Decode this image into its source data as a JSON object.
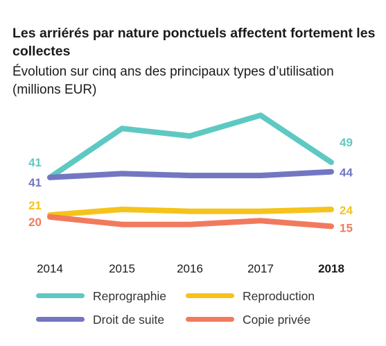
{
  "title": "Les arriérés par nature ponctuels affectent fortement les collectes",
  "subtitle": "Évolution sur cinq ans des principaux types d’utilisation (millions EUR)",
  "chart_data": {
    "type": "line",
    "categories": [
      "2014",
      "2015",
      "2016",
      "2017",
      "2018"
    ],
    "highlight_category": "2018",
    "ylim": [
      10,
      80
    ],
    "grid": false,
    "legend_position": "bottom",
    "series": [
      {
        "name": "Reprographie",
        "color": "#5ec9c2",
        "values": [
          41,
          67,
          63,
          74,
          49
        ],
        "start_label": "41",
        "end_label": "49"
      },
      {
        "name": "Droit de suite",
        "color": "#7277c2",
        "values": [
          41,
          43,
          42,
          42,
          44
        ],
        "start_label": "41",
        "end_label": "44"
      },
      {
        "name": "Reproduction",
        "color": "#f6c31c",
        "values": [
          21,
          24,
          23,
          23,
          24
        ],
        "start_label": "21",
        "end_label": "24"
      },
      {
        "name": "Copie privée",
        "color": "#f17a5e",
        "values": [
          20,
          16,
          16,
          18,
          15
        ],
        "start_label": "20",
        "end_label": "15"
      }
    ]
  },
  "legend": {
    "items": [
      {
        "label": "Reprographie",
        "color": "#5ec9c2"
      },
      {
        "label": "Reproduction",
        "color": "#f6c31c"
      },
      {
        "label": "Droit de suite",
        "color": "#7277c2"
      },
      {
        "label": "Copie privée",
        "color": "#f17a5e"
      }
    ]
  }
}
